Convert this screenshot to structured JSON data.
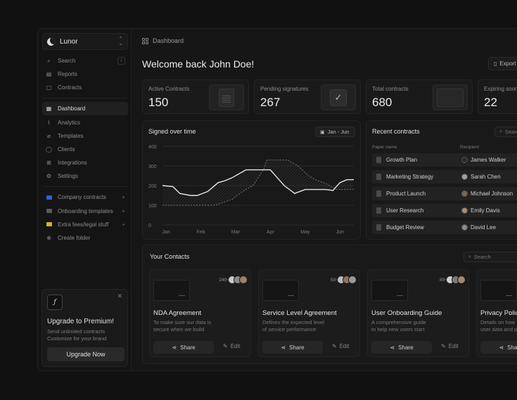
{
  "workspace": {
    "name": "Lunor"
  },
  "sidebar": {
    "search": {
      "label": "Search",
      "shortcut": "/"
    },
    "top_items": [
      {
        "label": "Reports",
        "icon": "document-icon"
      },
      {
        "label": "Contracts",
        "icon": "file-icon"
      }
    ],
    "main_items": [
      {
        "label": "Dashboard",
        "icon": "grid-icon",
        "active": true
      },
      {
        "label": "Analytics",
        "icon": "chart-icon"
      },
      {
        "label": "Templates",
        "icon": "clip-icon"
      },
      {
        "label": "Clients",
        "icon": "user-icon"
      },
      {
        "label": "Integrations",
        "icon": "puzzle-icon"
      },
      {
        "label": "Settings",
        "icon": "gear-icon"
      }
    ],
    "folders": [
      {
        "label": "Company contracts",
        "color": "#2f5fd6"
      },
      {
        "label": "Onboarding templates",
        "color": "#5a5a5a"
      },
      {
        "label": "Extra fees/legal stuff",
        "color": "#d6b02f"
      }
    ],
    "create_folder": "Create folder",
    "upgrade": {
      "title": "Upgrade to Premium!",
      "desc_line1": "Send unlimited contracts",
      "desc_line2": "Customize for your brand",
      "button": "Upgrade Now"
    }
  },
  "header": {
    "breadcrumb": "Dashboard",
    "welcome": "Welcome back John Doe!",
    "export": "Export"
  },
  "stats": [
    {
      "label": "Active Contracts",
      "value": "150"
    },
    {
      "label": "Pending signatures",
      "value": "267"
    },
    {
      "label": "Total contracts",
      "value": "680"
    },
    {
      "label": "Expiring soon",
      "value": "22"
    }
  ],
  "signed_chart": {
    "title": "Signed over time",
    "date_range": "Jan - Jun"
  },
  "chart_data": {
    "type": "line",
    "title": "Signed over time",
    "categories": [
      "Jan",
      "Feb",
      "Mar",
      "Apr",
      "May",
      "Jun"
    ],
    "ylim": [
      0,
      400
    ],
    "yticks": [
      0,
      100,
      200,
      300,
      400
    ],
    "grid": true,
    "series": [
      {
        "style": "solid",
        "x": [
          0,
          0.3,
          0.5,
          0.8,
          1.0,
          1.3,
          1.6,
          1.8,
          2.0,
          2.4,
          2.8,
          3.1,
          3.3,
          3.5,
          3.8,
          4.1,
          4.4,
          4.7,
          4.9,
          5.1,
          5.3,
          5.5
        ],
        "y": [
          200,
          195,
          160,
          150,
          150,
          170,
          215,
          225,
          240,
          280,
          280,
          280,
          240,
          200,
          160,
          180,
          180,
          180,
          175,
          215,
          230,
          230
        ]
      },
      {
        "style": "dashed",
        "x": [
          0,
          0.5,
          1.0,
          1.5,
          2.0,
          2.3,
          2.6,
          2.9,
          3.0,
          3.3,
          3.6,
          3.9,
          4.2,
          4.4,
          4.7,
          5.0,
          5.3,
          5.5
        ],
        "y": [
          100,
          100,
          100,
          100,
          130,
          170,
          200,
          280,
          330,
          330,
          330,
          300,
          250,
          230,
          210,
          180,
          180,
          180
        ]
      }
    ]
  },
  "recent": {
    "title": "Recent contracts",
    "search": "Search",
    "col_paper": "Paper name",
    "col_recipient": "Recipient",
    "rows": [
      {
        "paper": "Growth Plan",
        "recipient": "James Walker"
      },
      {
        "paper": "Marketing Strategy",
        "recipient": "Sarah Chen"
      },
      {
        "paper": "Product Launch",
        "recipient": "Michael Johnson"
      },
      {
        "paper": "User Research",
        "recipient": "Emily Davis"
      },
      {
        "paper": "Budget Review",
        "recipient": "David Lee"
      }
    ]
  },
  "contacts": {
    "title": "Your Contacts",
    "search": "Search",
    "share": "Share",
    "edit": "Edit",
    "cards": [
      {
        "name": "NDA Agreement",
        "desc1": "To make sure our data is",
        "desc2": "secure when we build",
        "count": "240+"
      },
      {
        "name": "Service Level Agreement",
        "desc1": "Defines the expected level",
        "desc2": "of service performance",
        "count": "50+"
      },
      {
        "name": "User Onboarding Guide",
        "desc1": "A comprehensive guide",
        "desc2": "to help new users start",
        "count": "89+"
      },
      {
        "name": "Privacy Policy",
        "desc1": "Details on how",
        "desc2": "user data and p",
        "count": ""
      }
    ]
  }
}
